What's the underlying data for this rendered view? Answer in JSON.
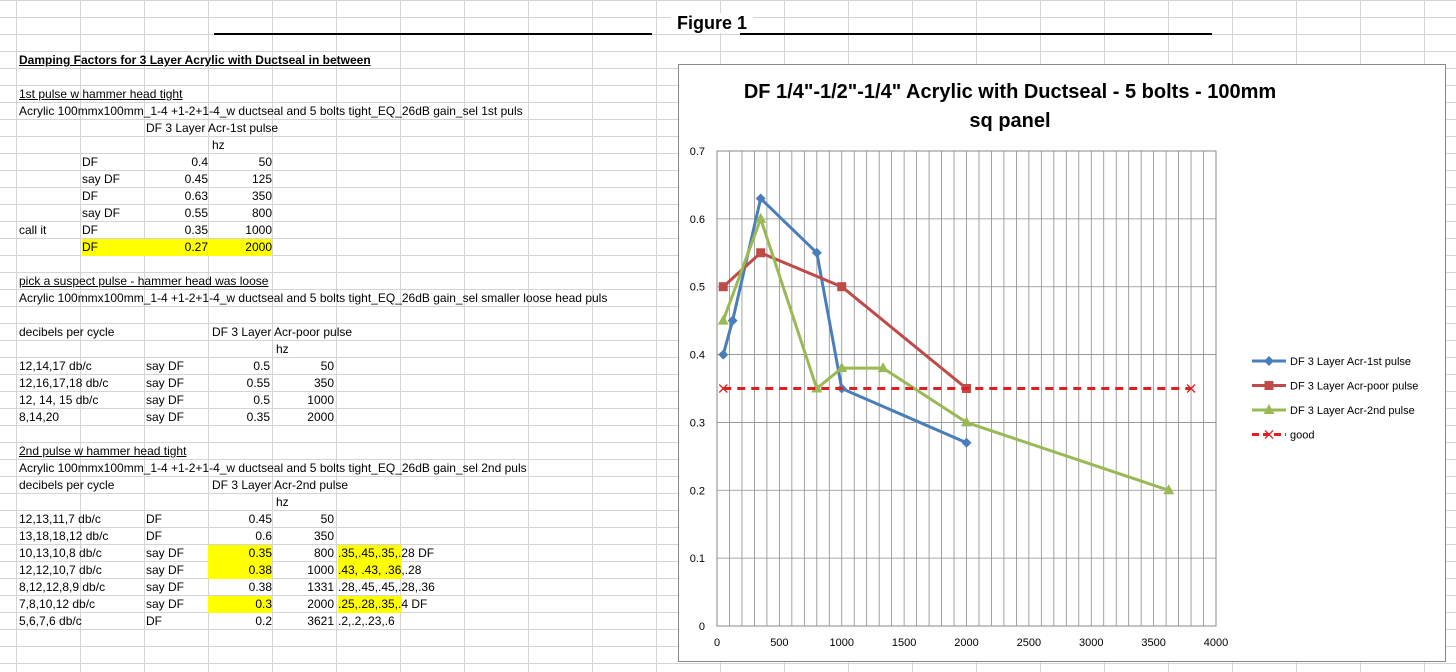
{
  "figure": {
    "title": "Figure 1"
  },
  "sheet": {
    "heading": "Damping Factors  for 3 Layer Acrylic with Ductseal in between",
    "section1": {
      "heading": "1st pulse w hammer head tight",
      "desc": "Acrylic 100mmx100mm_1-4 +1-2+1-4_w ductseal and 5 bolts tight_EQ_26dB gain_sel 1st puls",
      "col_title": "DF 3 Layer Acr-1st pulse",
      "hz": "hz",
      "rows": [
        {
          "a": "",
          "b": "DF",
          "c": "0.4",
          "d": "50"
        },
        {
          "a": "",
          "b": "say DF",
          "c": "0.45",
          "d": "125"
        },
        {
          "a": "",
          "b": "DF",
          "c": "0.63",
          "d": "350"
        },
        {
          "a": "",
          "b": "say DF",
          "c": "0.55",
          "d": "800"
        },
        {
          "a": "call it",
          "b": "DF",
          "c": "0.35",
          "d": "1000"
        },
        {
          "a": "",
          "b": "DF",
          "c": "0.27",
          "d": "2000"
        }
      ]
    },
    "section2": {
      "heading": "pick a suspect pulse - hammer head was loose",
      "desc": "Acrylic 100mmx100mm_1-4 +1-2+1-4_w ductseal and 5 bolts tight_EQ_26dB gain_sel smaller loose head puls",
      "label": "decibels per cycle",
      "col_title": "DF 3 Layer Acr-poor pulse",
      "hz": "hz",
      "rows": [
        {
          "a": "12,14,17 db/c",
          "b": "say DF",
          "c": "0.5",
          "d": "50"
        },
        {
          "a": "12,16,17,18 db/c",
          "b": "say DF",
          "c": "0.55",
          "d": "350"
        },
        {
          "a": "12, 14, 15 db/c",
          "b": "say DF",
          "c": "0.5",
          "d": "1000"
        },
        {
          "a": "8,14,20",
          "b": "say DF",
          "c": "0.35",
          "d": "2000"
        }
      ]
    },
    "section3": {
      "heading": "2nd pulse w hammer head tight",
      "desc": "Acrylic 100mmx100mm_1-4 +1-2+1-4_w ductseal and 5 bolts tight_EQ_26dB gain_sel 2nd puls",
      "label": "decibels per cycle",
      "col_title": "DF 3 Layer Acr-2nd pulse",
      "hz": "hz",
      "rows": [
        {
          "a": "12,13,11,7 db/c",
          "b": "DF",
          "c": "0.45",
          "d": "50",
          "e": ""
        },
        {
          "a": "13,18,18,12 db/c",
          "b": "DF",
          "c": "0.6",
          "d": "350",
          "e": ""
        },
        {
          "a": "10,13,10,8 db/c",
          "b": "say DF",
          "c": "0.35",
          "d": "800",
          "e": ".35,.45,.35,.28 DF"
        },
        {
          "a": "12,12,10,7 db/c",
          "b": "say DF",
          "c": "0.38",
          "d": "1000",
          "e": ".43, .43, .36,.28"
        },
        {
          "a": " 8,12,12,8,9 db/c",
          "b": "say DF",
          "c": "0.38",
          "d": "1331",
          "e": ".28,.45,.45,.28,.36"
        },
        {
          "a": "7,8,10,12 db/c",
          "b": "say DF",
          "c": "0.3",
          "d": "2000",
          "e": ".25,.28,.35,.4 DF"
        },
        {
          "a": "5,6,7,6 db/c",
          "b": "DF",
          "c": "0.2",
          "d": "3621",
          "e": ".2,.2,.23,.6"
        }
      ]
    },
    "highlight_color": "#ffff00"
  },
  "chart_data": {
    "type": "scatter",
    "title": "DF 1/4\"-1/2\"-1/4\"  Acrylic with Ductseal - 5 bolts - 100mm sq panel",
    "title_lines": [
      "DF 1/4\"-1/2\"-1/4\"  Acrylic with Ductseal - 5 bolts - 100mm",
      "sq panel"
    ],
    "xlim": [
      0,
      4000
    ],
    "ylim": [
      0,
      0.7
    ],
    "x_ticks": [
      0,
      500,
      1000,
      1500,
      2000,
      2500,
      3000,
      3500,
      4000
    ],
    "y_ticks": [
      0,
      0.1,
      0.2,
      0.3,
      0.4,
      0.5,
      0.6,
      0.7
    ],
    "x_minor_step": 100,
    "grid": true,
    "legend_position": "right",
    "series": [
      {
        "name": "DF 3 Layer Acr-1st pulse",
        "color": "#4a7ebb",
        "marker": "diamond",
        "dashed": false,
        "x": [
          50,
          125,
          350,
          800,
          1000,
          2000
        ],
        "y": [
          0.4,
          0.45,
          0.63,
          0.55,
          0.35,
          0.27
        ]
      },
      {
        "name": "DF 3 Layer Acr-poor pulse",
        "color": "#be4b48",
        "marker": "square",
        "dashed": false,
        "x": [
          50,
          350,
          1000,
          2000
        ],
        "y": [
          0.5,
          0.55,
          0.5,
          0.35
        ]
      },
      {
        "name": "DF 3 Layer Acr-2nd pulse",
        "color": "#98b954",
        "marker": "triangle",
        "dashed": false,
        "x": [
          50,
          350,
          800,
          1000,
          1331,
          2000,
          3621
        ],
        "y": [
          0.45,
          0.6,
          0.35,
          0.38,
          0.38,
          0.3,
          0.2
        ]
      },
      {
        "name": "good",
        "color": "#e02020",
        "marker": "x",
        "dashed": true,
        "x": [
          50,
          3800
        ],
        "y": [
          0.35,
          0.35
        ]
      }
    ]
  }
}
